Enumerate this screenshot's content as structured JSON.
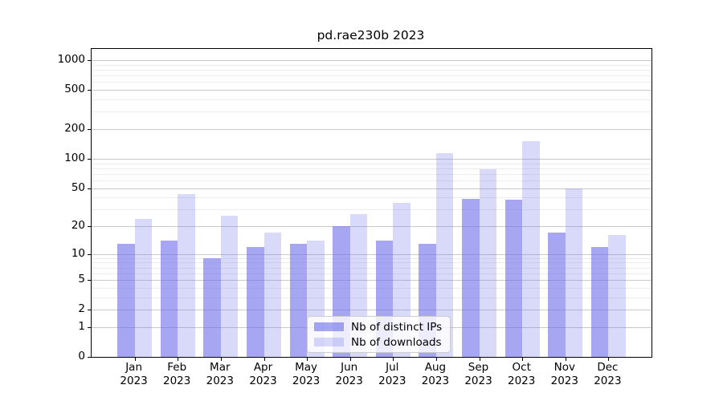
{
  "chart_data": {
    "type": "bar",
    "title": "pd.rae230b 2023",
    "categories": [
      "Jan 2023",
      "Feb 2023",
      "Mar 2023",
      "Apr 2023",
      "May 2023",
      "Jun 2023",
      "Jul 2023",
      "Aug 2023",
      "Sep 2023",
      "Oct 2023",
      "Nov 2023",
      "Dec 2023"
    ],
    "x_tick_months": [
      "Jan",
      "Feb",
      "Mar",
      "Apr",
      "May",
      "Jun",
      "Jul",
      "Aug",
      "Sep",
      "Oct",
      "Nov",
      "Dec"
    ],
    "x_tick_year": "2023",
    "series": [
      {
        "name": "Nb of distinct IPs",
        "values": [
          13,
          14,
          9,
          12,
          13,
          20,
          14,
          13,
          39,
          38,
          17,
          12
        ],
        "color": "rgba(110,110,235,0.61)",
        "solid_hex": "#a6a6f0"
      },
      {
        "name": "Nb of downloads",
        "values": [
          24,
          43,
          26,
          17,
          14,
          27,
          35,
          114,
          78,
          150,
          50,
          16
        ],
        "color": "rgba(110,110,235,0.26)",
        "solid_hex": "#d9d9f9"
      }
    ],
    "y_axis": {
      "scale": "log(value+1)",
      "tick_labels": [
        "0",
        "1",
        "2",
        "5",
        "10",
        "20",
        "50",
        "100",
        "200",
        "500",
        "1000"
      ],
      "tick_values": [
        0,
        1,
        2,
        5,
        10,
        20,
        50,
        100,
        200,
        500,
        1000
      ],
      "minor_tick_values": [
        3,
        4,
        6,
        7,
        8,
        9,
        30,
        40,
        60,
        70,
        80,
        90,
        300,
        400,
        600,
        700,
        800,
        900
      ],
      "ylim": [
        0,
        1300
      ]
    },
    "legend": {
      "entries": [
        "Nb of distinct IPs",
        "Nb of downloads"
      ],
      "position": "lower-center"
    },
    "grid": {
      "major_color": "#c9c9c9",
      "minor_color": "#ececec"
    },
    "frame_color": "#000000",
    "background": "#ffffff"
  }
}
